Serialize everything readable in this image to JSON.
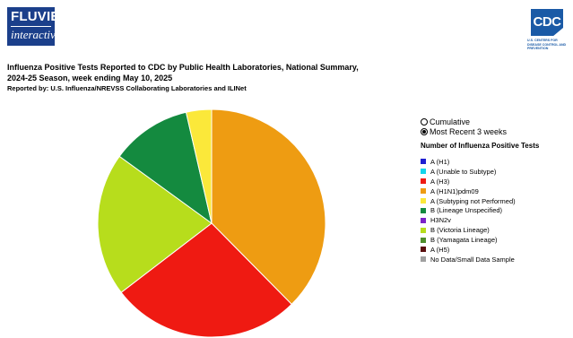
{
  "branding": {
    "fluview_line1": "FLUVIEW",
    "fluview_line2": "interactive",
    "cdc_tag": "CDC",
    "cdc_sub": "U.S. CENTERS FOR DISEASE CONTROL AND PREVENTION"
  },
  "header": {
    "title_line1": "Influenza Positive Tests Reported to CDC by Public Health Laboratories, National Summary,",
    "title_line2": "2024-25 Season, week ending May 10, 2025",
    "reported_by": "Reported by: U.S. Influenza/NREVSS Collaborating Laboratories and ILINet"
  },
  "view_options": {
    "cumulative_label": "Cumulative",
    "recent_label": "Most Recent 3 weeks",
    "selected": "Most Recent 3 weeks"
  },
  "legend": {
    "title": "Number of Influenza Positive Tests",
    "items": [
      {
        "label": "A (H1)",
        "color": "#1f1fd1"
      },
      {
        "label": "A (Unable to Subtype)",
        "color": "#13d5eb"
      },
      {
        "label": "A (H3)",
        "color": "#ef1a12"
      },
      {
        "label": "A (H1N1)pdm09",
        "color": "#ee9c12"
      },
      {
        "label": "A (Subtyping not Performed)",
        "color": "#fbe83a"
      },
      {
        "label": "B (Lineage Unspecified)",
        "color": "#148a3f"
      },
      {
        "label": "H3N2v",
        "color": "#7b22c9"
      },
      {
        "label": "B (Victoria Lineage)",
        "color": "#b7dd1c"
      },
      {
        "label": "B (Yamagata Lineage)",
        "color": "#4f8e2c"
      },
      {
        "label": "A (H5)",
        "color": "#5a0e0e"
      },
      {
        "label": "No Data/Small Data Sample",
        "color": "#a0a0a0"
      }
    ]
  },
  "chart_data": {
    "type": "pie",
    "slices": [
      {
        "label": "A (H1N1)pdm09",
        "value": 37.6,
        "color": "#ee9c12"
      },
      {
        "label": "A (H3)",
        "color": "#ef1a12",
        "value": 27.0
      },
      {
        "label": "B (Victoria Lineage)",
        "color": "#b7dd1c",
        "value": 20.4
      },
      {
        "label": "B (Lineage Unspecified)",
        "color": "#148a3f",
        "value": 11.4
      },
      {
        "label": "A (Subtyping not Performed)",
        "color": "#fbe83a",
        "value": 3.6
      }
    ],
    "start_angle_deg": 0,
    "direction": "clockwise"
  }
}
